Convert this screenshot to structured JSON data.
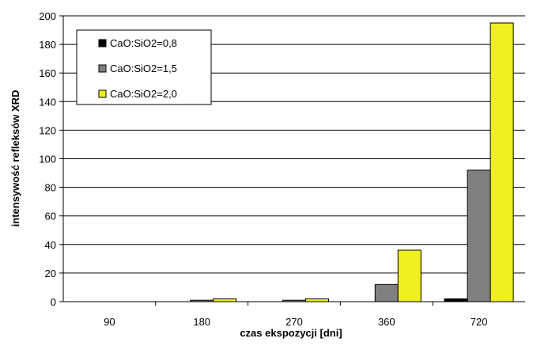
{
  "chart_data": {
    "type": "bar",
    "title": "",
    "xlabel": "czas ekspozycji [dni]",
    "ylabel": "intensywość refleksów XRD",
    "categories": [
      "90",
      "180",
      "270",
      "360",
      "720"
    ],
    "ylim": [
      0,
      200
    ],
    "yticks": [
      0,
      20,
      40,
      60,
      80,
      100,
      120,
      140,
      160,
      180,
      200
    ],
    "grid": "horizontal",
    "legend_position": "top-left",
    "series": [
      {
        "name": "CaO:SiO2=0,8",
        "color": "#000000",
        "values": [
          0,
          0,
          0,
          0,
          2
        ]
      },
      {
        "name": "CaO:SiO2=1,5",
        "color": "#808080",
        "values": [
          0,
          1,
          1,
          12,
          92
        ]
      },
      {
        "name": "CaO:SiO2=2,0",
        "color": "#f0f020",
        "values": [
          0,
          2,
          2,
          36,
          195
        ]
      }
    ]
  }
}
